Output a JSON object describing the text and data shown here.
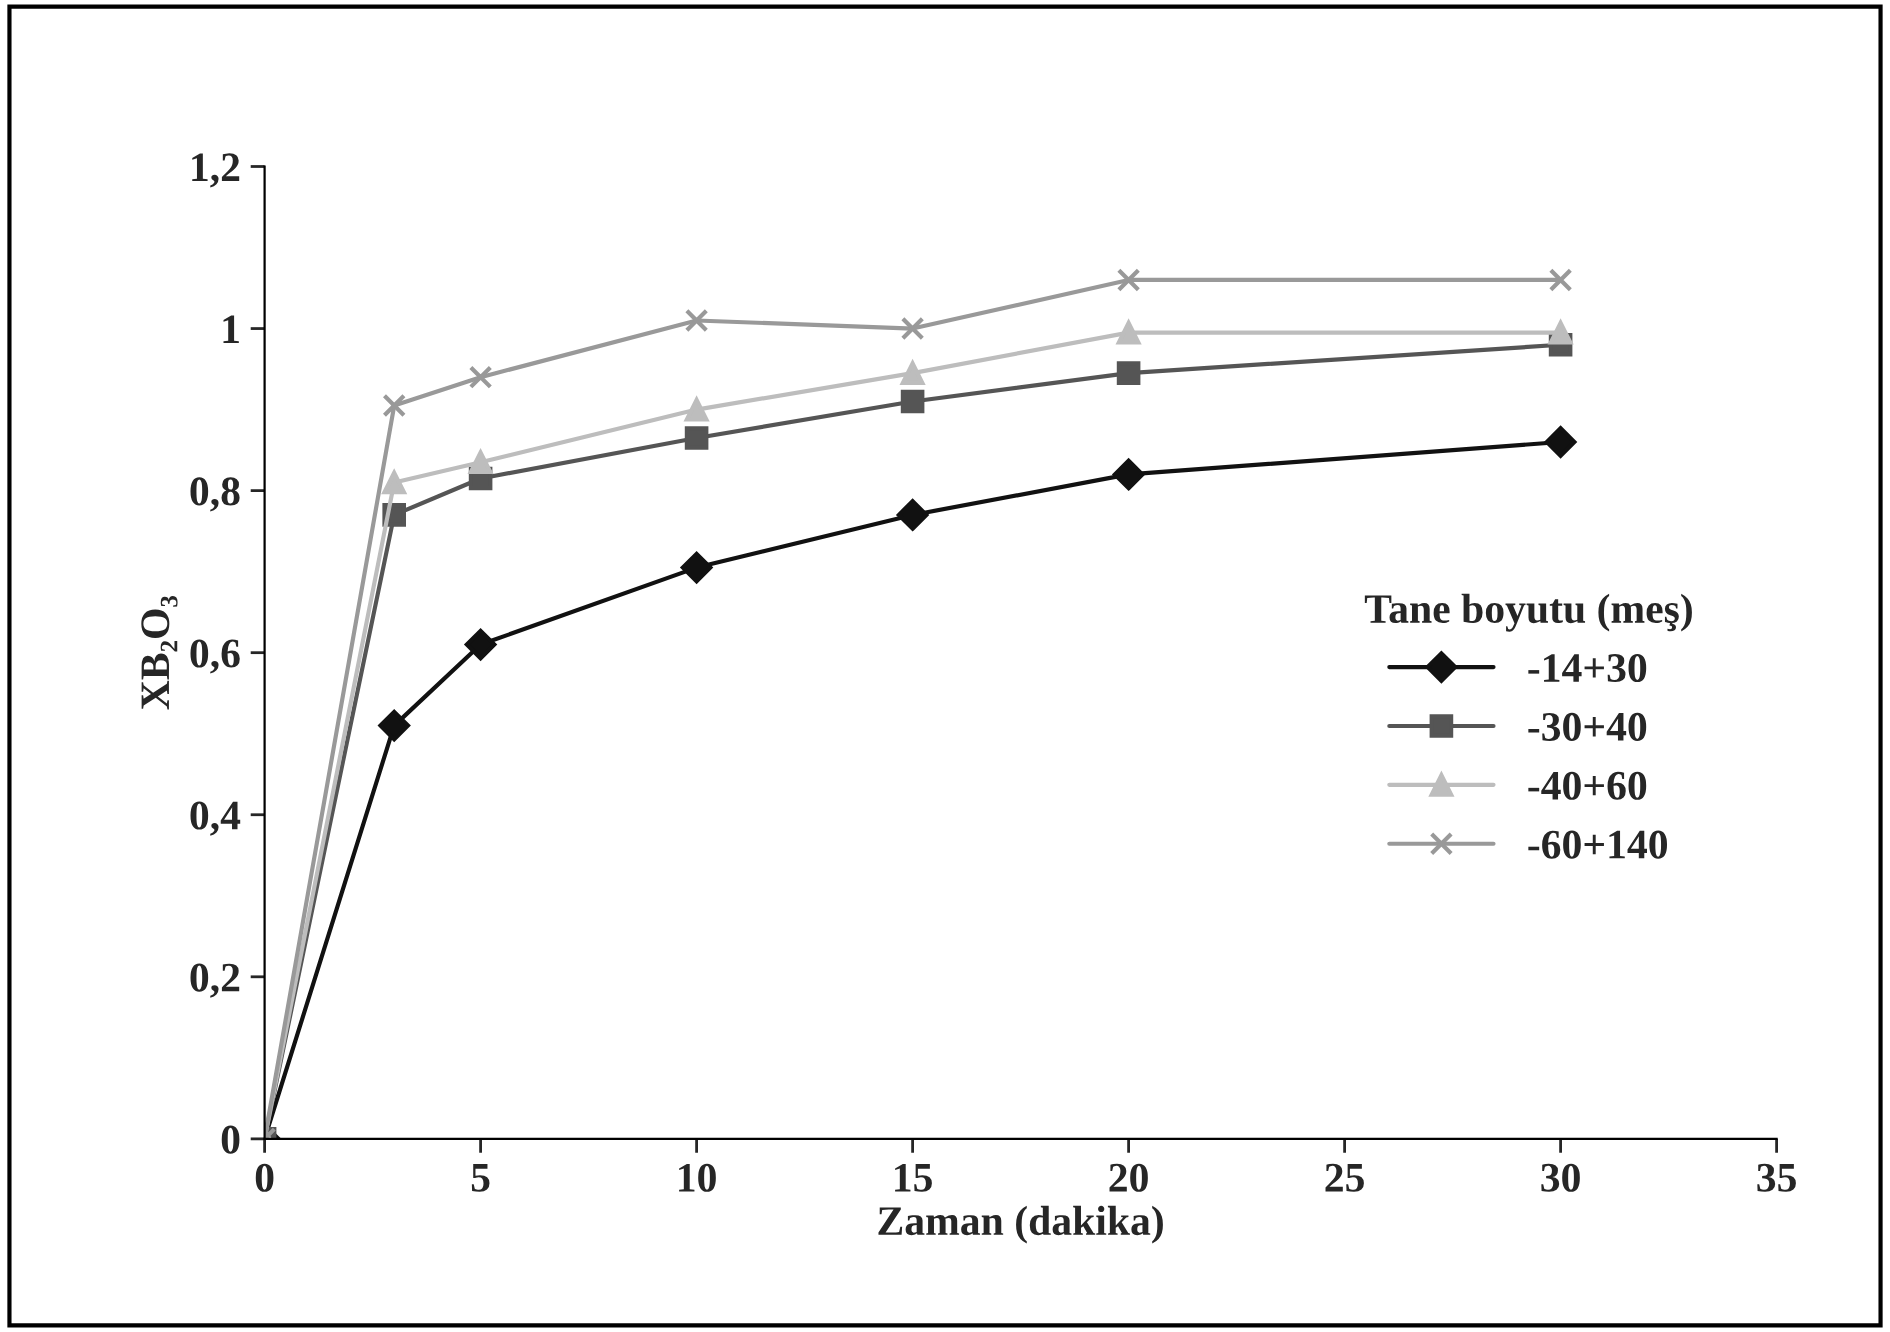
{
  "chart_data": {
    "type": "line",
    "xlabel": "Zaman (dakika)",
    "ylabel": "XB₂O₃",
    "legend_title": "Tane boyutu (meş)",
    "legend": "right",
    "grid": false,
    "xlim": [
      0,
      35
    ],
    "xticks": [
      0,
      5,
      10,
      15,
      20,
      25,
      30,
      35
    ],
    "ylim": [
      0,
      1.2
    ],
    "yticks": [
      0,
      {
        "value": 0.2,
        "label": "0,2"
      },
      {
        "value": 0.4,
        "label": "0,4"
      },
      {
        "value": 0.6,
        "label": "0,6"
      },
      {
        "value": 0.8,
        "label": "0,8"
      },
      1,
      {
        "value": 1.2,
        "label": "1,2"
      }
    ],
    "x": [
      0,
      3,
      5,
      10,
      15,
      20,
      30
    ],
    "series": [
      {
        "name": "-14+30",
        "color": "#111111",
        "marker": "diamond",
        "values": [
          0,
          0.51,
          0.61,
          0.705,
          0.77,
          0.82,
          0.86
        ]
      },
      {
        "name": "-30+40",
        "color": "#555555",
        "marker": "square",
        "values": [
          0,
          0.77,
          0.815,
          0.865,
          0.91,
          0.945,
          0.98
        ]
      },
      {
        "name": "-40+60",
        "color": "#bdbdbd",
        "marker": "triangle",
        "values": [
          0,
          0.81,
          0.835,
          0.9,
          0.945,
          0.995,
          0.995
        ]
      },
      {
        "name": "-60+140",
        "color": "#999999",
        "marker": "cross",
        "values": [
          0,
          0.905,
          0.94,
          1.01,
          1.0,
          1.06,
          1.06
        ]
      }
    ]
  }
}
